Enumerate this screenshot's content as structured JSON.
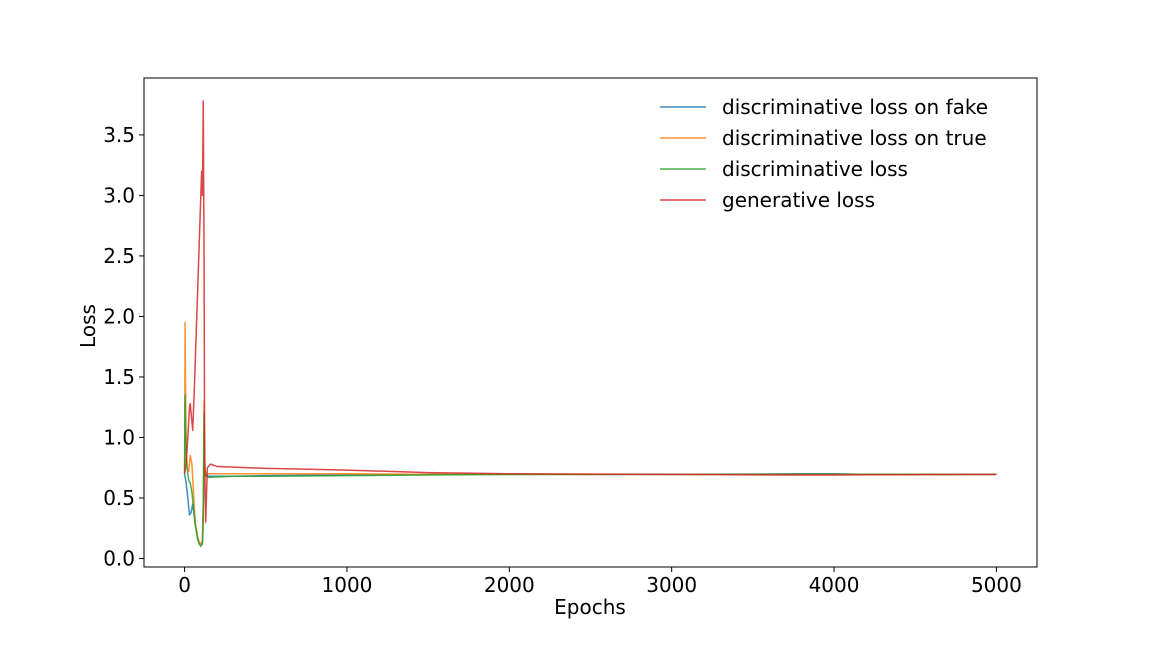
{
  "chart_data": {
    "type": "line",
    "title": "",
    "xlabel": "Epochs",
    "ylabel": "Loss",
    "xlim": [
      -250,
      5250
    ],
    "ylim": [
      -0.07,
      3.97
    ],
    "x_ticks": [
      0,
      1000,
      2000,
      3000,
      4000,
      5000
    ],
    "x_tick_labels": [
      "0",
      "1000",
      "2000",
      "3000",
      "4000",
      "5000"
    ],
    "y_ticks": [
      0.0,
      0.5,
      1.0,
      1.5,
      2.0,
      2.5,
      3.0,
      3.5
    ],
    "y_tick_labels": [
      "0.0",
      "0.5",
      "1.0",
      "1.5",
      "2.0",
      "2.5",
      "3.0",
      "3.5"
    ],
    "grid": false,
    "legend_position": "top-right",
    "series": [
      {
        "name": "discriminative loss on fake",
        "color": "#1f77b4",
        "x": [
          0,
          10,
          20,
          30,
          40,
          50,
          60,
          70,
          80,
          90,
          100,
          110,
          115,
          120,
          125,
          130,
          150,
          200,
          300,
          500,
          1000,
          1500,
          2000,
          3000,
          3800,
          4000,
          4200,
          5000
        ],
        "y": [
          0.7,
          0.62,
          0.5,
          0.36,
          0.38,
          0.45,
          0.35,
          0.25,
          0.18,
          0.13,
          0.12,
          0.14,
          0.4,
          0.85,
          0.72,
          0.69,
          0.68,
          0.68,
          0.68,
          0.685,
          0.69,
          0.695,
          0.695,
          0.695,
          0.7,
          0.7,
          0.695,
          0.695
        ]
      },
      {
        "name": "discriminative loss on true",
        "color": "#ff7f0e",
        "x": [
          0,
          3,
          8,
          15,
          25,
          35,
          45,
          55,
          65,
          80,
          90,
          100,
          110,
          115,
          120,
          125,
          130,
          150,
          200,
          300,
          500,
          1000,
          1500,
          2000,
          3000,
          4000,
          5000
        ],
        "y": [
          0.7,
          1.95,
          1.1,
          0.75,
          0.72,
          0.85,
          0.78,
          0.55,
          0.3,
          0.18,
          0.13,
          0.12,
          0.15,
          0.5,
          1.3,
          0.75,
          0.7,
          0.7,
          0.7,
          0.7,
          0.7,
          0.7,
          0.695,
          0.695,
          0.695,
          0.695,
          0.695
        ]
      },
      {
        "name": "discriminative loss",
        "color": "#2ca02c",
        "x": [
          0,
          3,
          8,
          15,
          25,
          35,
          45,
          55,
          65,
          80,
          90,
          100,
          110,
          115,
          120,
          125,
          130,
          150,
          200,
          300,
          500,
          1000,
          1500,
          2000,
          3000,
          4000,
          5000
        ],
        "y": [
          0.7,
          1.35,
          0.95,
          0.75,
          0.65,
          0.62,
          0.55,
          0.42,
          0.28,
          0.16,
          0.12,
          0.1,
          0.12,
          0.3,
          1.2,
          0.72,
          0.68,
          0.67,
          0.675,
          0.68,
          0.68,
          0.685,
          0.69,
          0.695,
          0.695,
          0.695,
          0.695
        ]
      },
      {
        "name": "generative loss",
        "color": "#d62728",
        "x": [
          0,
          10,
          20,
          30,
          35,
          40,
          50,
          60,
          70,
          80,
          90,
          100,
          105,
          110,
          115,
          120,
          123,
          126,
          130,
          140,
          160,
          200,
          300,
          500,
          700,
          1000,
          1500,
          2000,
          2500,
          3000,
          3800,
          4000,
          4200,
          5000
        ],
        "y": [
          0.7,
          0.8,
          1.0,
          1.25,
          1.28,
          1.2,
          1.06,
          1.4,
          1.8,
          2.2,
          2.6,
          3.0,
          3.2,
          3.0,
          3.78,
          2.5,
          1.0,
          0.6,
          0.3,
          0.75,
          0.78,
          0.76,
          0.755,
          0.745,
          0.74,
          0.73,
          0.71,
          0.7,
          0.697,
          0.695,
          0.69,
          0.69,
          0.692,
          0.695
        ]
      }
    ]
  }
}
